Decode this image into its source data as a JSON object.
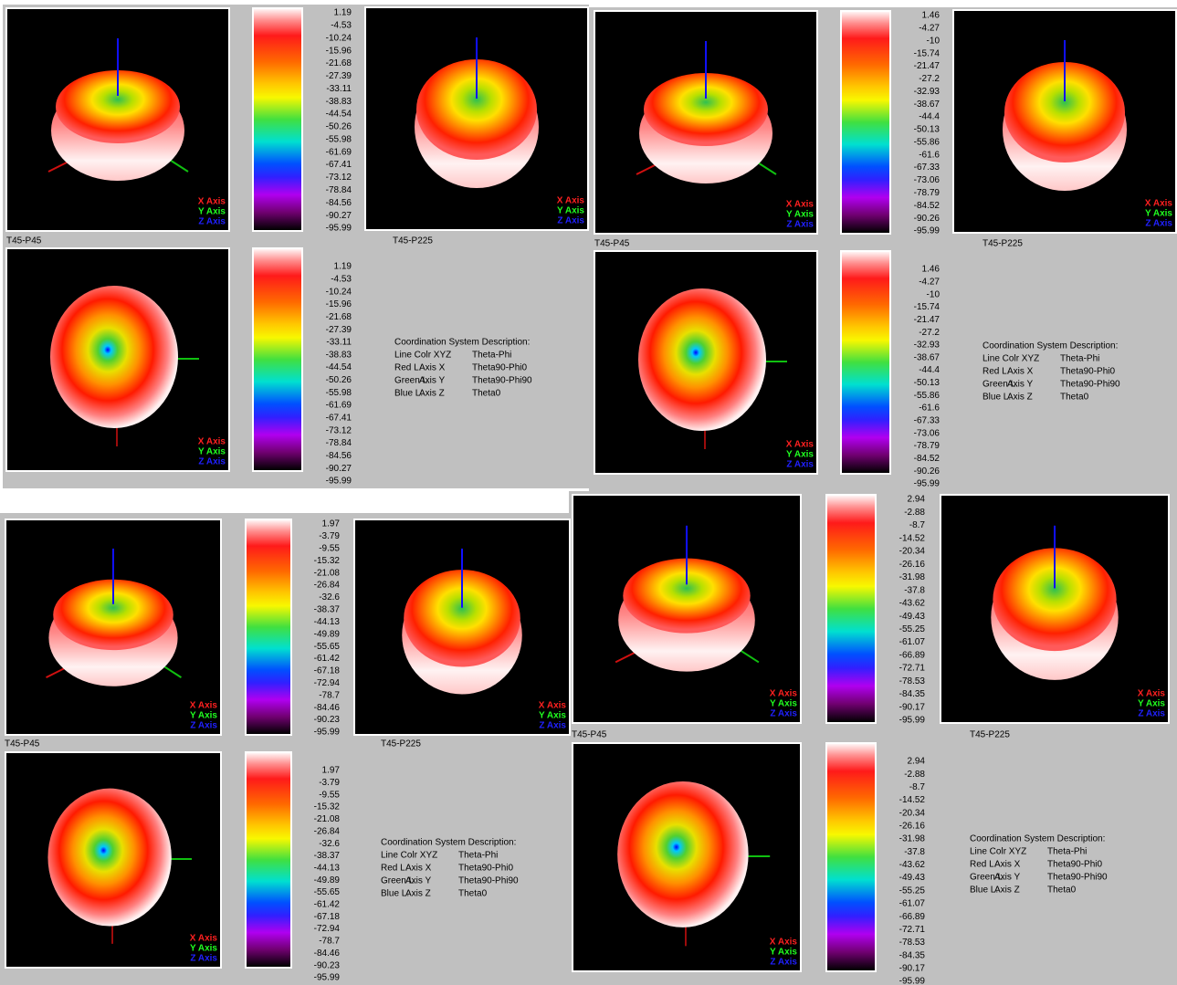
{
  "view_labels": [
    "T45-P45",
    "T45-P225"
  ],
  "axis_legend": [
    "X Axis",
    "Y Axis",
    "Z Axis"
  ],
  "description": {
    "title": "Coordination System Description:",
    "rows": [
      [
        "Line Colr XYZ",
        "Theta-Phi"
      ],
      [
        "Red L.",
        "Axis X",
        "Theta90-Phi0"
      ],
      [
        "Green L.",
        "Axis Y",
        "Theta90-Phi90"
      ],
      [
        "Blue L.",
        "Axis Z",
        "Theta0"
      ]
    ]
  },
  "panels": [
    {
      "scale": [
        1.19,
        -4.53,
        -10.24,
        -15.96,
        -21.68,
        -27.39,
        -33.11,
        -38.83,
        -44.54,
        -50.26,
        -55.98,
        -61.69,
        -67.41,
        -73.12,
        -78.84,
        -84.56,
        -90.27,
        -95.99
      ]
    },
    {
      "scale": [
        1.46,
        -4.27,
        -10,
        -15.74,
        -21.47,
        -27.2,
        -32.93,
        -38.67,
        -44.4,
        -50.13,
        -55.86,
        -61.6,
        -67.33,
        -73.06,
        -78.79,
        -84.52,
        -90.26,
        -95.99
      ]
    },
    {
      "scale": [
        1.97,
        -3.79,
        -9.55,
        -15.32,
        -21.08,
        -26.84,
        -32.6,
        -38.37,
        -44.13,
        -49.89,
        -55.65,
        -61.42,
        -67.18,
        -72.94,
        -78.7,
        -84.46,
        -90.23,
        -95.99
      ]
    },
    {
      "scale": [
        2.94,
        -2.88,
        -8.7,
        -14.52,
        -20.34,
        -26.16,
        -31.98,
        -37.8,
        -43.62,
        -49.43,
        -55.25,
        -61.07,
        -66.89,
        -72.71,
        -78.53,
        -84.35,
        -90.17,
        -95.99
      ]
    }
  ]
}
